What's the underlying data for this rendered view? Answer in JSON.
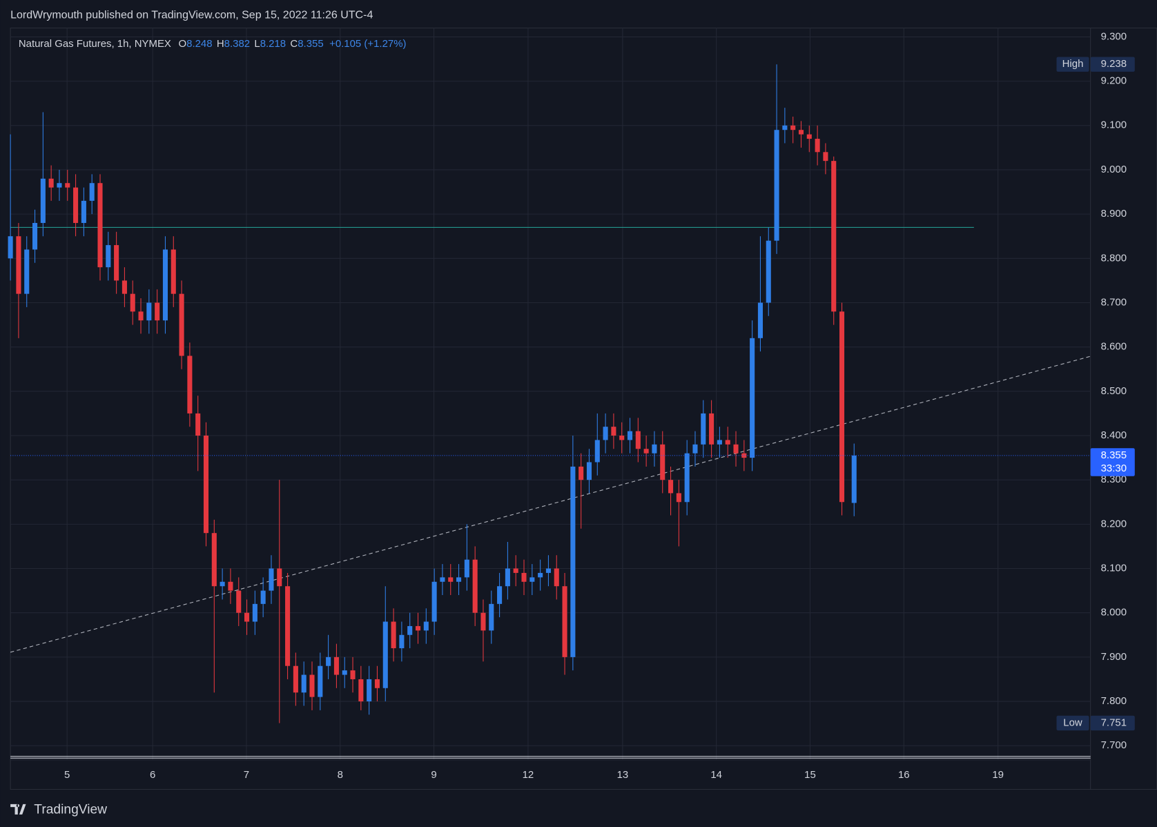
{
  "header": "LordWrymouth published on TradingView.com, Sep 15, 2022 11:26 UTC-4",
  "footer": "TradingView",
  "chart_data": {
    "type": "candlestick",
    "title": "Natural Gas Futures, 1h, NYMEX",
    "ohlc_labels": [
      "O",
      "H",
      "L",
      "C"
    ],
    "change_label": "+0.105 (+1.27%)",
    "countdown": "33:30",
    "up_color": "#2f7fe8",
    "down_color": "#e5383f",
    "grid": true,
    "xlim": [
      0,
      265
    ],
    "ylim": [
      7.668,
      9.32
    ],
    "xticks": [
      {
        "value": 13.9,
        "label": "5"
      },
      {
        "value": 34.9,
        "label": "6"
      },
      {
        "value": 57.9,
        "label": "7"
      },
      {
        "value": 80.9,
        "label": "8"
      },
      {
        "value": 103.9,
        "label": "9"
      },
      {
        "value": 127.0,
        "label": "12"
      },
      {
        "value": 150.2,
        "label": "13"
      },
      {
        "value": 173.2,
        "label": "14"
      },
      {
        "value": 196.2,
        "label": "15"
      },
      {
        "value": 219.2,
        "label": "16"
      },
      {
        "value": 242.3,
        "label": "19"
      }
    ],
    "yticks": [
      {
        "value": 7.7,
        "label": "7.700"
      },
      {
        "value": 7.8,
        "label": "7.800"
      },
      {
        "value": 7.9,
        "label": "7.900"
      },
      {
        "value": 8.0,
        "label": "8.000"
      },
      {
        "value": 8.1,
        "label": "8.100"
      },
      {
        "value": 8.2,
        "label": "8.200"
      },
      {
        "value": 8.3,
        "label": "8.300"
      },
      {
        "value": 8.4,
        "label": "8.400"
      },
      {
        "value": 8.5,
        "label": "8.500"
      },
      {
        "value": 8.6,
        "label": "8.600"
      },
      {
        "value": 8.7,
        "label": "8.700"
      },
      {
        "value": 8.8,
        "label": "8.800"
      },
      {
        "value": 8.9,
        "label": "8.900"
      },
      {
        "value": 9.0,
        "label": "9.000"
      },
      {
        "value": 9.1,
        "label": "9.100"
      },
      {
        "value": 9.2,
        "label": "9.200"
      },
      {
        "value": 9.3,
        "label": "9.300"
      }
    ],
    "price_tags": [
      {
        "label": "High",
        "value": 9.238
      },
      {
        "label": "Low",
        "value": 7.751
      }
    ],
    "drawings": [
      {
        "kind": "horizontal",
        "color": "#26a69a",
        "x": [
          0,
          236.4
        ],
        "y": [
          8.87,
          8.87
        ]
      },
      {
        "kind": "trend",
        "color": "#b2b5be",
        "x": [
          0,
          265
        ],
        "y": [
          7.911,
          8.579
        ]
      },
      {
        "kind": "horizontal",
        "color": "#d1d4dc",
        "x": [
          0,
          265
        ],
        "y": [
          7.676,
          7.676
        ]
      },
      {
        "kind": "horizontal",
        "color": "#d1d4dc",
        "x": [
          0,
          265
        ],
        "y": [
          7.672,
          7.672
        ]
      }
    ],
    "x": [
      0,
      2,
      4,
      6,
      8,
      10,
      12,
      14,
      16,
      18,
      20,
      22,
      24,
      26,
      28,
      30,
      32,
      34,
      36,
      38,
      40,
      42,
      44,
      46,
      48,
      50,
      52,
      54,
      56,
      58,
      60,
      62,
      64,
      66,
      68,
      70,
      72,
      74,
      76,
      78,
      80,
      82,
      84,
      86,
      88,
      90,
      92,
      94,
      96,
      98,
      100,
      102,
      104,
      106,
      108,
      110,
      112,
      114,
      116,
      118,
      120,
      122,
      124,
      126,
      128,
      130,
      132,
      134,
      136,
      138,
      140,
      142,
      144,
      146,
      148,
      150,
      152,
      154,
      156,
      158,
      160,
      162,
      164,
      166,
      168,
      170,
      172,
      174,
      176,
      178,
      180,
      182,
      184,
      186,
      188,
      190,
      192,
      194,
      196,
      198,
      200,
      202,
      204,
      207
    ],
    "open": [
      8.8,
      8.85,
      8.72,
      8.82,
      8.88,
      8.98,
      8.96,
      8.97,
      8.96,
      8.88,
      8.93,
      8.97,
      8.78,
      8.83,
      8.75,
      8.72,
      8.68,
      8.66,
      8.7,
      8.66,
      8.82,
      8.72,
      8.58,
      8.45,
      8.4,
      8.18,
      8.06,
      8.07,
      8.05,
      8.0,
      7.98,
      8.02,
      8.05,
      8.1,
      8.06,
      7.88,
      7.82,
      7.86,
      7.81,
      7.88,
      7.9,
      7.86,
      7.87,
      7.85,
      7.8,
      7.85,
      7.83,
      7.98,
      7.92,
      7.95,
      7.97,
      7.96,
      7.98,
      8.07,
      8.08,
      8.07,
      8.08,
      8.12,
      8.0,
      7.96,
      8.02,
      8.06,
      8.1,
      8.09,
      8.07,
      8.08,
      8.09,
      8.1,
      8.06,
      7.9,
      8.33,
      8.3,
      8.34,
      8.39,
      8.42,
      8.4,
      8.39,
      8.41,
      8.37,
      8.36,
      8.38,
      8.3,
      8.27,
      8.25,
      8.36,
      8.38,
      8.45,
      8.38,
      8.39,
      8.38,
      8.36,
      8.35,
      8.62,
      8.7,
      8.84,
      9.09,
      9.1,
      9.09,
      9.08,
      9.07,
      9.04,
      9.02,
      8.68,
      8.248
    ],
    "high": [
      9.08,
      8.88,
      8.85,
      8.91,
      9.13,
      9.01,
      9.0,
      9.0,
      8.99,
      8.96,
      8.99,
      8.99,
      8.86,
      8.86,
      8.78,
      8.75,
      8.71,
      8.73,
      8.73,
      8.85,
      8.85,
      8.75,
      8.61,
      8.49,
      8.43,
      8.21,
      8.1,
      8.1,
      8.08,
      8.03,
      8.05,
      8.08,
      8.13,
      8.3,
      8.09,
      7.91,
      7.89,
      7.89,
      7.91,
      7.95,
      7.93,
      7.9,
      7.9,
      7.88,
      7.88,
      7.88,
      8.06,
      8.01,
      7.98,
      8.0,
      8.0,
      8.01,
      8.1,
      8.11,
      8.11,
      8.11,
      8.2,
      8.15,
      8.03,
      8.05,
      8.09,
      8.16,
      8.13,
      8.12,
      8.11,
      8.12,
      8.13,
      8.13,
      8.09,
      8.4,
      8.36,
      8.37,
      8.45,
      8.45,
      8.45,
      8.43,
      8.44,
      8.44,
      8.4,
      8.41,
      8.41,
      8.33,
      8.3,
      8.39,
      8.41,
      8.48,
      8.48,
      8.42,
      8.42,
      8.41,
      8.39,
      8.66,
      8.85,
      8.87,
      9.238,
      9.14,
      9.12,
      9.11,
      9.1,
      9.1,
      9.06,
      9.03,
      8.7,
      8.382
    ],
    "low": [
      8.75,
      8.62,
      8.69,
      8.79,
      8.85,
      8.93,
      8.93,
      8.93,
      8.85,
      8.85,
      8.9,
      8.75,
      8.75,
      8.72,
      8.69,
      8.65,
      8.63,
      8.63,
      8.63,
      8.63,
      8.69,
      8.55,
      8.42,
      8.32,
      8.15,
      7.82,
      8.03,
      8.02,
      7.97,
      7.95,
      7.95,
      7.99,
      8.02,
      7.751,
      7.85,
      7.79,
      7.79,
      7.78,
      7.78,
      7.85,
      7.83,
      7.83,
      7.82,
      7.78,
      7.77,
      7.8,
      7.8,
      7.89,
      7.89,
      7.92,
      7.93,
      7.93,
      7.95,
      8.04,
      8.04,
      8.04,
      8.05,
      7.97,
      7.89,
      7.93,
      7.99,
      8.03,
      8.06,
      8.04,
      8.04,
      8.05,
      8.06,
      8.03,
      7.86,
      7.87,
      8.19,
      8.27,
      8.31,
      8.36,
      8.37,
      8.36,
      8.36,
      8.34,
      8.33,
      8.33,
      8.27,
      8.22,
      8.15,
      8.22,
      8.33,
      8.35,
      8.35,
      8.35,
      8.35,
      8.33,
      8.32,
      8.32,
      8.59,
      8.67,
      8.81,
      9.06,
      9.06,
      9.05,
      9.04,
      9.01,
      8.99,
      8.65,
      8.22,
      8.218
    ],
    "close": [
      8.85,
      8.72,
      8.82,
      8.88,
      8.98,
      8.96,
      8.97,
      8.96,
      8.88,
      8.93,
      8.97,
      8.78,
      8.83,
      8.75,
      8.72,
      8.68,
      8.66,
      8.7,
      8.66,
      8.82,
      8.72,
      8.58,
      8.45,
      8.4,
      8.18,
      8.06,
      8.07,
      8.05,
      8.0,
      7.98,
      8.02,
      8.05,
      8.1,
      8.06,
      7.88,
      7.82,
      7.86,
      7.81,
      7.88,
      7.9,
      7.86,
      7.87,
      7.85,
      7.8,
      7.85,
      7.83,
      7.98,
      7.92,
      7.95,
      7.97,
      7.96,
      7.98,
      8.07,
      8.08,
      8.07,
      8.08,
      8.12,
      8.0,
      7.96,
      8.02,
      8.06,
      8.1,
      8.09,
      8.07,
      8.08,
      8.09,
      8.1,
      8.06,
      7.9,
      8.33,
      8.3,
      8.34,
      8.39,
      8.42,
      8.4,
      8.39,
      8.41,
      8.37,
      8.36,
      8.38,
      8.3,
      8.27,
      8.25,
      8.36,
      8.38,
      8.45,
      8.38,
      8.39,
      8.38,
      8.36,
      8.35,
      8.62,
      8.7,
      8.84,
      9.09,
      9.1,
      9.09,
      9.08,
      9.07,
      9.04,
      9.02,
      8.68,
      8.25,
      8.355
    ]
  }
}
